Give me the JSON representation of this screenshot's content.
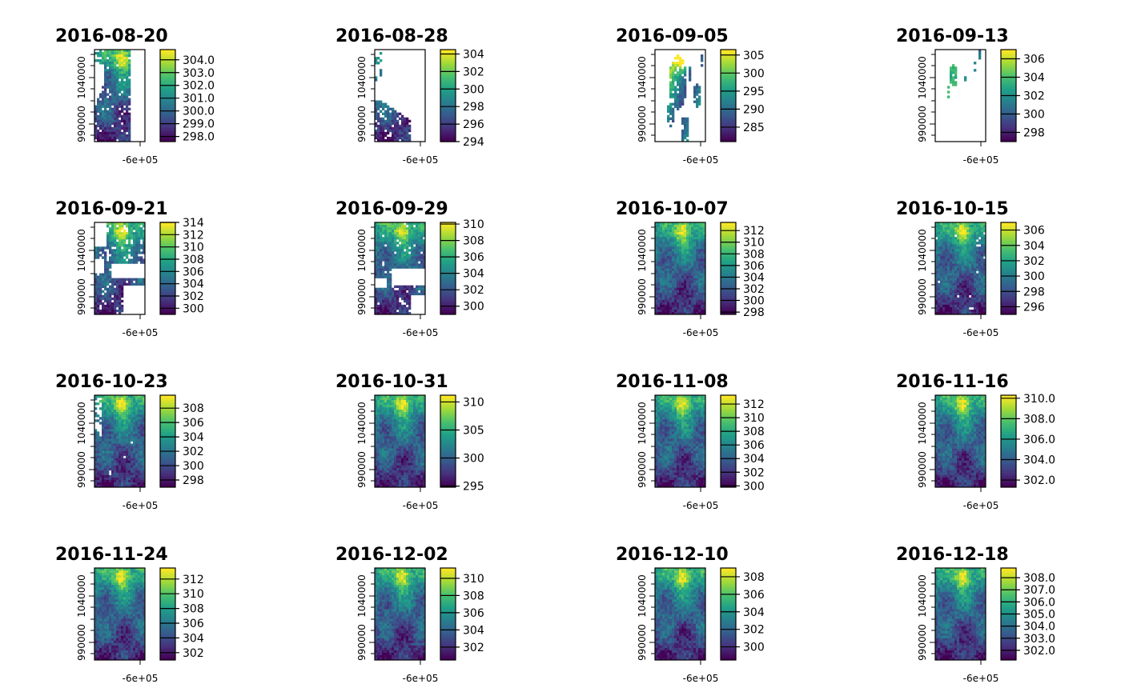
{
  "chart_data": [
    {
      "type": "heatmap",
      "title": "2016-08-20",
      "yticks": [
        "990000",
        "1040000"
      ],
      "xticks": [
        "-6e+05"
      ],
      "colorbar": {
        "ticks": [
          "298.0",
          "299.0",
          "300.0",
          "301.0",
          "302.0",
          "303.0",
          "304.0"
        ],
        "min": 297.6,
        "max": 304.8
      },
      "coverage": "cloud-masked: coverage concentrated in western strip"
    },
    {
      "type": "heatmap",
      "title": "2016-08-28",
      "yticks": [
        "990000",
        "1040000"
      ],
      "xticks": [
        "-6e+05"
      ],
      "colorbar": {
        "ticks": [
          "294",
          "296",
          "298",
          "300",
          "302",
          "304"
        ],
        "min": 294,
        "max": 304.5
      },
      "coverage": "cloud-masked: coverage in lower-left corner"
    },
    {
      "type": "heatmap",
      "title": "2016-09-05",
      "yticks": [
        "990000",
        "1040000"
      ],
      "xticks": [
        "-6e+05"
      ],
      "colorbar": {
        "ticks": [
          "285",
          "290",
          "295",
          "300",
          "305"
        ],
        "min": 281,
        "max": 306.5
      },
      "coverage": "cloud-masked: scattered patches"
    },
    {
      "type": "heatmap",
      "title": "2016-09-13",
      "yticks": [
        "990000",
        "1040000"
      ],
      "xticks": [
        "-6e+05"
      ],
      "colorbar": {
        "ticks": [
          "298",
          "300",
          "302",
          "304",
          "306"
        ],
        "min": 297,
        "max": 307
      },
      "coverage": "cloud-masked: few small patches"
    },
    {
      "type": "heatmap",
      "title": "2016-09-21",
      "yticks": [
        "990000",
        "1040000"
      ],
      "xticks": [
        "-6e+05"
      ],
      "colorbar": {
        "ticks": [
          "300",
          "302",
          "304",
          "306",
          "308",
          "310",
          "312",
          "314"
        ],
        "min": 299,
        "max": 314
      },
      "coverage": "cloud-masked: partial coverage"
    },
    {
      "type": "heatmap",
      "title": "2016-09-29",
      "yticks": [
        "990000",
        "1040000"
      ],
      "xticks": [
        "-6e+05"
      ],
      "colorbar": {
        "ticks": [
          "300",
          "302",
          "304",
          "306",
          "308",
          "310"
        ],
        "min": 299,
        "max": 310.2
      },
      "coverage": "cloud-masked: partial coverage"
    },
    {
      "type": "heatmap",
      "title": "2016-10-07",
      "yticks": [
        "990000",
        "1040000"
      ],
      "xticks": [
        "-6e+05"
      ],
      "colorbar": {
        "ticks": [
          "298",
          "300",
          "302",
          "304",
          "306",
          "308",
          "310",
          "312"
        ],
        "min": 297.6,
        "max": 313.4
      },
      "coverage": "full"
    },
    {
      "type": "heatmap",
      "title": "2016-10-15",
      "yticks": [
        "990000",
        "1040000"
      ],
      "xticks": [
        "-6e+05"
      ],
      "colorbar": {
        "ticks": [
          "296",
          "298",
          "300",
          "302",
          "304",
          "306"
        ],
        "min": 295,
        "max": 307
      },
      "coverage": "nearly full"
    },
    {
      "type": "heatmap",
      "title": "2016-10-23",
      "yticks": [
        "990000",
        "1040000"
      ],
      "xticks": [
        "-6e+05"
      ],
      "colorbar": {
        "ticks": [
          "298",
          "300",
          "302",
          "304",
          "306",
          "308"
        ],
        "min": 297,
        "max": 309.8
      },
      "coverage": "nearly full"
    },
    {
      "type": "heatmap",
      "title": "2016-10-31",
      "yticks": [
        "990000",
        "1040000"
      ],
      "xticks": [
        "-6e+05"
      ],
      "colorbar": {
        "ticks": [
          "295",
          "300",
          "305",
          "310"
        ],
        "min": 294.8,
        "max": 311.2
      },
      "coverage": "full"
    },
    {
      "type": "heatmap",
      "title": "2016-11-08",
      "yticks": [
        "990000",
        "1040000"
      ],
      "xticks": [
        "-6e+05"
      ],
      "colorbar": {
        "ticks": [
          "300",
          "302",
          "304",
          "306",
          "308",
          "310",
          "312"
        ],
        "min": 299.8,
        "max": 313.3
      },
      "coverage": "full"
    },
    {
      "type": "heatmap",
      "title": "2016-11-16",
      "yticks": [
        "990000",
        "1040000"
      ],
      "xticks": [
        "-6e+05"
      ],
      "colorbar": {
        "ticks": [
          "302.0",
          "304.0",
          "306.0",
          "308.0",
          "310.0"
        ],
        "min": 301.3,
        "max": 310.3
      },
      "coverage": "full"
    },
    {
      "type": "heatmap",
      "title": "2016-11-24",
      "yticks": [
        "990000",
        "1040000"
      ],
      "xticks": [
        "-6e+05"
      ],
      "colorbar": {
        "ticks": [
          "302",
          "304",
          "306",
          "308",
          "310",
          "312"
        ],
        "min": 301,
        "max": 313.5
      },
      "coverage": "full"
    },
    {
      "type": "heatmap",
      "title": "2016-12-02",
      "yticks": [
        "990000",
        "1040000"
      ],
      "xticks": [
        "-6e+05"
      ],
      "colorbar": {
        "ticks": [
          "302",
          "304",
          "306",
          "308",
          "310"
        ],
        "min": 300.5,
        "max": 311.2
      },
      "coverage": "full"
    },
    {
      "type": "heatmap",
      "title": "2016-12-10",
      "yticks": [
        "990000",
        "1040000"
      ],
      "xticks": [
        "-6e+05"
      ],
      "colorbar": {
        "ticks": [
          "300",
          "302",
          "304",
          "306",
          "308"
        ],
        "min": 298.5,
        "max": 309
      },
      "coverage": "full"
    },
    {
      "type": "heatmap",
      "title": "2016-12-18",
      "yticks": [
        "990000",
        "1040000"
      ],
      "xticks": [
        "-6e+05"
      ],
      "colorbar": {
        "ticks": [
          "302.0",
          "303.0",
          "304.0",
          "305.0",
          "306.0",
          "307.0",
          "308.0"
        ],
        "min": 301.2,
        "max": 308.8
      },
      "coverage": "full"
    }
  ],
  "palette": [
    "#440154",
    "#46337e",
    "#365c8d",
    "#277f8e",
    "#1fa187",
    "#4ac16d",
    "#a0da39",
    "#fde725"
  ]
}
